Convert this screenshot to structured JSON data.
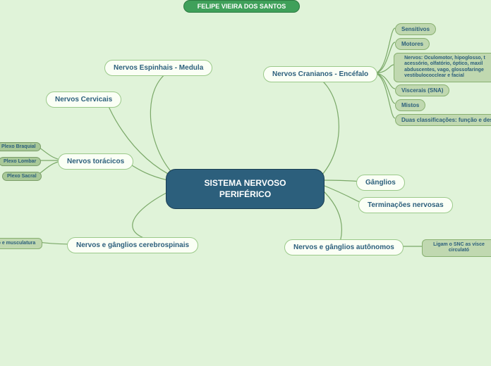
{
  "header": {
    "title": "FELIPE VIEIRA DOS SANTOS"
  },
  "center": {
    "line1": "SISTEMA NERVOSO",
    "line2": "PERIFÉRICO"
  },
  "left": {
    "espinhais": "Nervos Espinhais - Medula",
    "cervicais": "Nervos Cervicais",
    "toracicos": "Nervos torácicos",
    "cerebrospinais": "Nervos e gânglios cerebrospinais",
    "plexo_braquial": "Plexo Braquial",
    "plexo_lombar": "Plexo Lombar",
    "plexo_sacral": "Plexo Sacral",
    "cerebrospinais_desc": "lo e musculatura"
  },
  "right": {
    "cranianos": "Nervos Cranianos - Encéfalo",
    "ganglios": "Gânglios",
    "terminacoes": "Terminações nervosas",
    "autonomos": "Nervos e gânglios autônomos",
    "sensitivos": "Sensitivos",
    "motores": "Motores",
    "nervos_desc": "Nervos: Oculomotor, hipoglosso, t\nacessório, olfatório, óptico, maxil\nabduscentes, vago, glossofaringe\nvestibulococclear e facial",
    "viscerais": "Viscerais (SNA)",
    "mistos": "Mistos",
    "classificacoes": "Duas classificações: função e desen",
    "autonomos_desc": "Ligam o SNC as vísce\ncirculató"
  },
  "colors": {
    "bg": "#e0f3d9",
    "center_bg": "#2c5f7c",
    "header_bg": "#3fa05a",
    "main_bg": "#fafff5",
    "sub_bg": "#c0d8b0",
    "connector": "#7aa868"
  }
}
